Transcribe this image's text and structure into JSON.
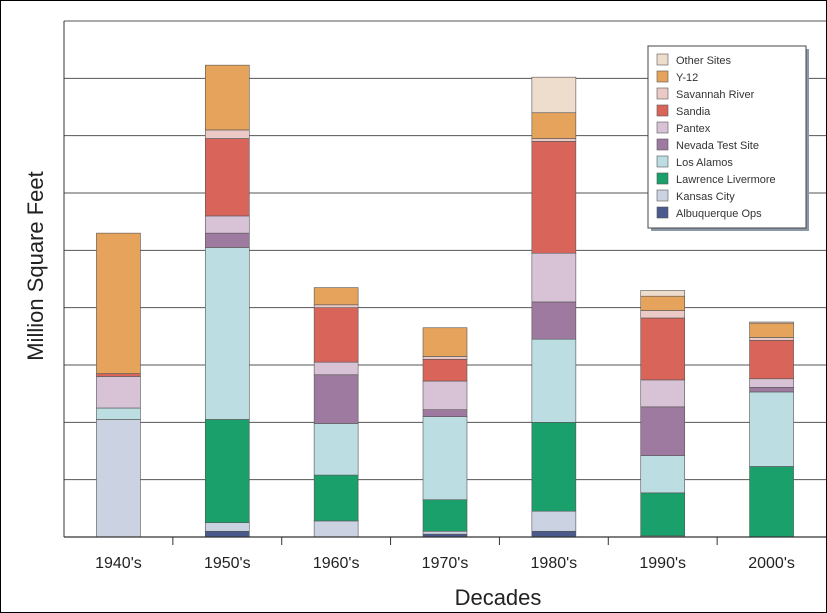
{
  "chart_data": {
    "type": "bar",
    "stacked": true,
    "title": "",
    "xlabel": "Decades",
    "ylabel": "Million Square Feet",
    "categories": [
      "1940's",
      "1950's",
      "1960's",
      "1970's",
      "1980's",
      "1990's",
      "2000's"
    ],
    "ylim": [
      0,
      9
    ],
    "y_tick_labels_visible": false,
    "grid": true,
    "legend_position": "top-right",
    "series": [
      {
        "name": "Albuquerque Ops",
        "color": "#4a5a8c",
        "values": [
          0,
          0.1,
          0,
          0.05,
          0.1,
          0,
          0
        ]
      },
      {
        "name": "Kansas City",
        "color": "#cbd3e3",
        "values": [
          2.05,
          0.15,
          0.28,
          0.05,
          0.35,
          0.02,
          0
        ]
      },
      {
        "name": "Lawrence Livermore",
        "color": "#1aa06b",
        "values": [
          0,
          1.8,
          0.8,
          0.55,
          1.55,
          0.75,
          1.23
        ]
      },
      {
        "name": "Los Alamos",
        "color": "#bcdde2",
        "values": [
          0.2,
          3.0,
          0.9,
          1.45,
          1.45,
          0.65,
          1.3
        ]
      },
      {
        "name": "Nevada Test Site",
        "color": "#9f7aa0",
        "values": [
          0,
          0.25,
          0.85,
          0.12,
          0.65,
          0.85,
          0.08
        ]
      },
      {
        "name": "Pantex",
        "color": "#d8c3d6",
        "values": [
          0.55,
          0.3,
          0.22,
          0.5,
          0.85,
          0.47,
          0.15
        ]
      },
      {
        "name": "Sandia",
        "color": "#d9645a",
        "values": [
          0.05,
          1.35,
          0.95,
          0.38,
          1.95,
          1.08,
          0.67
        ]
      },
      {
        "name": "Savannah River",
        "color": "#ebc9c6",
        "values": [
          0,
          0.15,
          0.05,
          0.05,
          0.05,
          0.13,
          0.05
        ]
      },
      {
        "name": "Y-12",
        "color": "#e6a35c",
        "values": [
          2.45,
          1.13,
          0.3,
          0.5,
          0.45,
          0.25,
          0.25
        ]
      },
      {
        "name": "Other Sites",
        "color": "#eedccd",
        "values": [
          0,
          0,
          0,
          0,
          0.62,
          0.1,
          0.02
        ]
      }
    ]
  }
}
